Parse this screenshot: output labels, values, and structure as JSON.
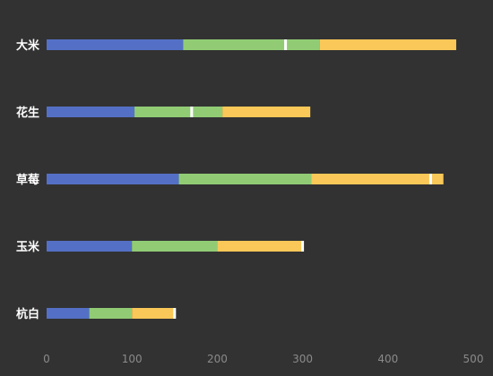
{
  "chart_data": {
    "type": "bar",
    "orientation": "horizontal",
    "stacked": true,
    "categories": [
      "大米",
      "花生",
      "草莓",
      "玉米",
      "杭白"
    ],
    "series": [
      {
        "values": [
          160,
          103,
          155,
          100,
          50
        ],
        "color": "#5470c6"
      },
      {
        "values": [
          160,
          103,
          155,
          100,
          50
        ],
        "color": "#91cc75"
      },
      {
        "values": [
          160,
          103,
          155,
          100,
          50
        ],
        "color": "#fac858"
      }
    ],
    "markers": {
      "values": [
        280,
        170,
        450,
        300,
        150
      ],
      "color": "#ffffff"
    },
    "xlim": [
      0,
      500
    ],
    "x_ticks": [
      "0",
      "100",
      "200",
      "300",
      "400",
      "500"
    ],
    "grid": false,
    "legend": "none",
    "title": "",
    "xlabel": "",
    "ylabel": ""
  }
}
